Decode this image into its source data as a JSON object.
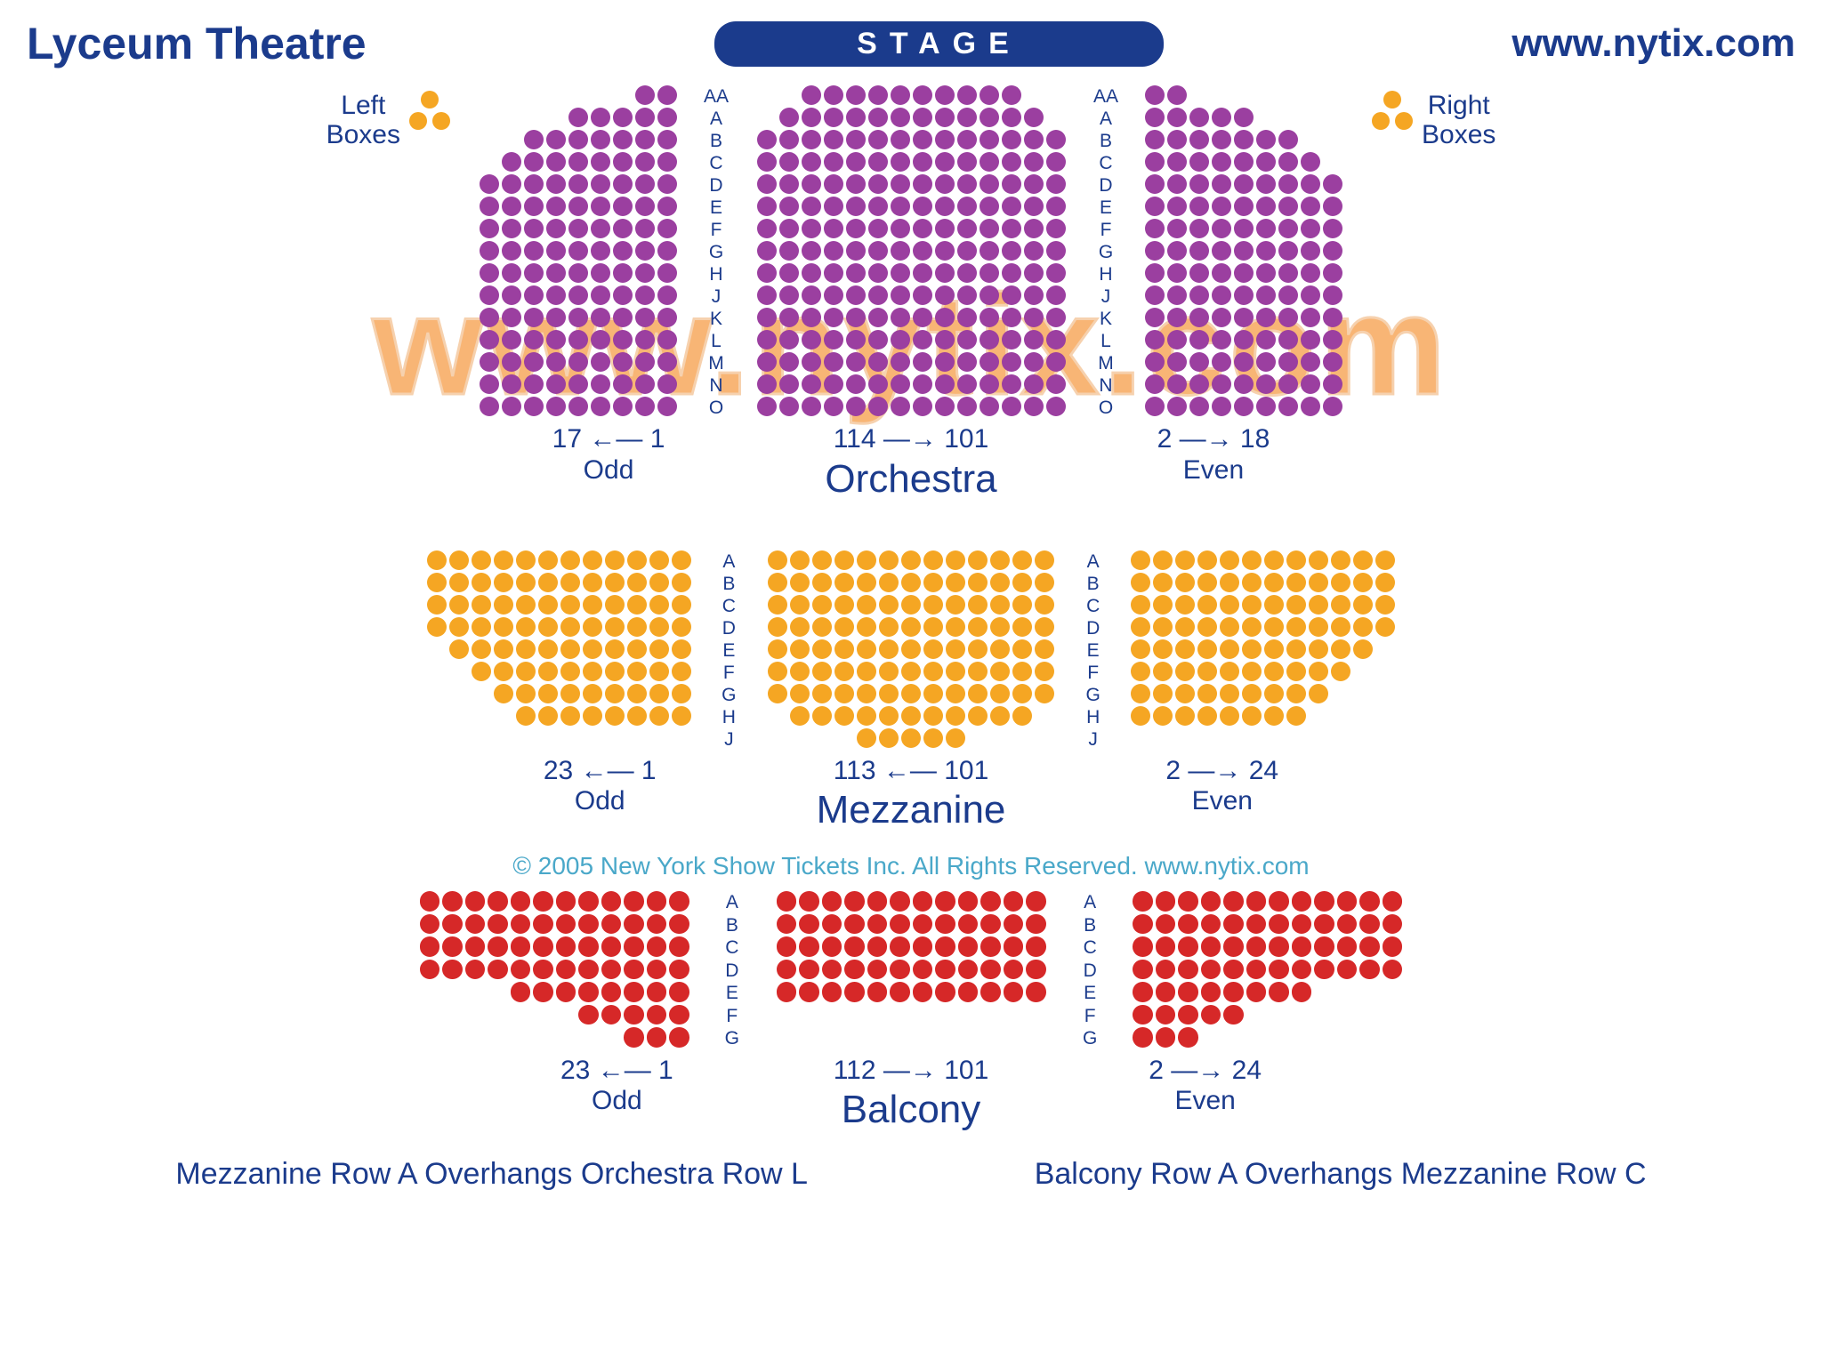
{
  "colors": {
    "navy": "#1b3b8c",
    "orchestra_seat": "#9b3fa0",
    "mezz_seat": "#f5a623",
    "balcony_seat": "#d62828",
    "box_seat": "#f5a623",
    "watermark_fill": "#f7a95e",
    "watermark_stroke": "#f5c9a0",
    "copyright": "#4aa8c9"
  },
  "sizes": {
    "seat_diameter": 22,
    "mezz_seat_diameter": 22,
    "balcony_seat_diameter": 22.5
  },
  "header": {
    "title": "Lyceum Theatre",
    "stage_label": "STAGE",
    "url": "www.nytix.com"
  },
  "boxes": {
    "left_label": "Left\nBoxes",
    "right_label": "Right\nBoxes"
  },
  "watermark": "www.nytix.com",
  "copyright": "© 2005 New York Show Tickets Inc. All Rights Reserved.   www.nytix.com",
  "overhang": {
    "left": "Mezzanine Row A Overhangs Orchestra Row L",
    "right": "Balcony Row A Overhangs Mezzanine Row C"
  },
  "orchestra": {
    "section_name": "Orchestra",
    "row_labels": [
      "AA",
      "A",
      "B",
      "C",
      "D",
      "E",
      "F",
      "G",
      "H",
      "J",
      "K",
      "L",
      "M",
      "N",
      "O"
    ],
    "left": {
      "rows": [
        2,
        5,
        7,
        8,
        9,
        9,
        9,
        9,
        9,
        9,
        9,
        9,
        9,
        9,
        9
      ],
      "align": "right",
      "numbering": "17 ←— 1",
      "parity": "Odd"
    },
    "center": {
      "rows": [
        10,
        12,
        14,
        14,
        14,
        14,
        14,
        14,
        14,
        14,
        14,
        14,
        14,
        14,
        14
      ],
      "align": "center",
      "numbering": "114 —→ 101"
    },
    "right": {
      "rows": [
        2,
        5,
        7,
        8,
        9,
        9,
        9,
        9,
        9,
        9,
        9,
        9,
        9,
        9,
        9
      ],
      "align": "left",
      "numbering": "2 —→ 18",
      "parity": "Even"
    }
  },
  "mezzanine": {
    "section_name": "Mezzanine",
    "row_labels": [
      "A",
      "B",
      "C",
      "D",
      "E",
      "F",
      "G",
      "H",
      "J"
    ],
    "left": {
      "rows": [
        12,
        12,
        12,
        12,
        11,
        10,
        9,
        8,
        0
      ],
      "align": "right",
      "numbering": "23 ←— 1",
      "parity": "Odd"
    },
    "center": {
      "rows": [
        13,
        13,
        13,
        13,
        13,
        13,
        13,
        11,
        5
      ],
      "align": "center",
      "numbering": "113 ←— 101"
    },
    "right": {
      "rows": [
        12,
        12,
        12,
        12,
        11,
        10,
        9,
        8,
        0
      ],
      "align": "left",
      "numbering": "2 —→ 24",
      "parity": "Even"
    }
  },
  "balcony": {
    "section_name": "Balcony",
    "row_labels": [
      "A",
      "B",
      "C",
      "D",
      "E",
      "F",
      "G"
    ],
    "left": {
      "rows": [
        12,
        12,
        12,
        12,
        8,
        5,
        3
      ],
      "align": "right",
      "numbering": "23 ←— 1",
      "parity": "Odd"
    },
    "center": {
      "rows": [
        12,
        12,
        12,
        12,
        12,
        0,
        0
      ],
      "align": "center",
      "numbering": "112 —→ 101"
    },
    "right": {
      "rows": [
        12,
        12,
        12,
        12,
        8,
        5,
        3
      ],
      "align": "left",
      "numbering": "2 —→ 24",
      "parity": "Even"
    }
  }
}
